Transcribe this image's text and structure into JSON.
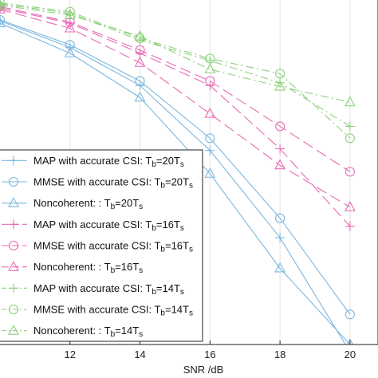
{
  "chart_data": {
    "type": "line",
    "xlabel": "SNR /dB",
    "ylabel": "",
    "x": [
      10,
      12,
      14,
      16,
      18,
      20
    ],
    "xticks": [
      "12",
      "14",
      "16",
      "18",
      "20"
    ],
    "xlim": [
      10,
      20.8
    ],
    "ylim": [
      4.5e-06,
      0.55
    ],
    "yscale": "log",
    "grid": true,
    "legend_position": "lower-left",
    "series": [
      {
        "name": "MAP with accurate CSI: Tb=20Ts",
        "tb": "20",
        "label_prefix": "MAP with accurate CSI: T",
        "color": "#7ab8e0",
        "marker": "plus",
        "dash": "solid",
        "values": [
          0.27,
          0.11,
          0.03,
          0.0033,
          0.00017,
          3.5e-06
        ]
      },
      {
        "name": "MMSE with accurate CSI: Tb=20Ts",
        "tb": "20",
        "label_prefix": "MMSE with accurate CSI: T",
        "color": "#7ab8e0",
        "marker": "circle",
        "dash": "solid",
        "values": [
          0.28,
          0.12,
          0.035,
          0.005,
          0.00033,
          1.25e-05
        ]
      },
      {
        "name": "Noncoherent: : Tb=20Ts",
        "tb": "20",
        "label_prefix": "Noncoherent: : T",
        "color": "#7ab8e0",
        "marker": "triangle",
        "dash": "solid",
        "values": [
          0.25,
          0.09,
          0.02,
          0.0015,
          6e-05,
          4.5e-06
        ]
      },
      {
        "name": "MAP with accurate CSI: Tb=16Ts",
        "tb": "16",
        "label_prefix": "MAP with accurate CSI: T",
        "color": "#e86ab4",
        "marker": "plus",
        "dash": "longdash",
        "values": [
          0.42,
          0.25,
          0.09,
          0.03,
          0.0035,
          0.00025
        ]
      },
      {
        "name": "MMSE with accurate CSI: Tb=16Ts",
        "tb": "16",
        "label_prefix": "MMSE with accurate CSI: T",
        "color": "#e86ab4",
        "marker": "circle",
        "dash": "longdash",
        "values": [
          0.44,
          0.26,
          0.1,
          0.035,
          0.0075,
          0.0016
        ]
      },
      {
        "name": "Noncoherent: : Tb=16Ts",
        "tb": "16",
        "label_prefix": "Noncoherent: : T",
        "color": "#e86ab4",
        "marker": "triangle",
        "dash": "longdash",
        "values": [
          0.4,
          0.21,
          0.065,
          0.0115,
          0.002,
          0.00048
        ]
      },
      {
        "name": "MAP with accurate CSI: Tb=14Ts",
        "tb": "14",
        "label_prefix": "MAP with accurate CSI: T",
        "color": "#8cd07a",
        "marker": "plus",
        "dash": "dashdot",
        "values": [
          0.48,
          0.35,
          0.14,
          0.07,
          0.033,
          0.0075
        ]
      },
      {
        "name": "MMSE with accurate CSI: Tb=14Ts",
        "tb": "14",
        "label_prefix": "MMSE with accurate CSI: T",
        "color": "#8cd07a",
        "marker": "circle",
        "dash": "dashdot",
        "values": [
          0.5,
          0.37,
          0.15,
          0.075,
          0.045,
          0.005
        ]
      },
      {
        "name": "Noncoherent: : Tb=14Ts",
        "tb": "14",
        "label_prefix": "Noncoherent: : T",
        "color": "#8cd07a",
        "marker": "triangle",
        "dash": "dashdot",
        "values": [
          0.46,
          0.33,
          0.16,
          0.052,
          0.029,
          0.017
        ]
      }
    ]
  }
}
